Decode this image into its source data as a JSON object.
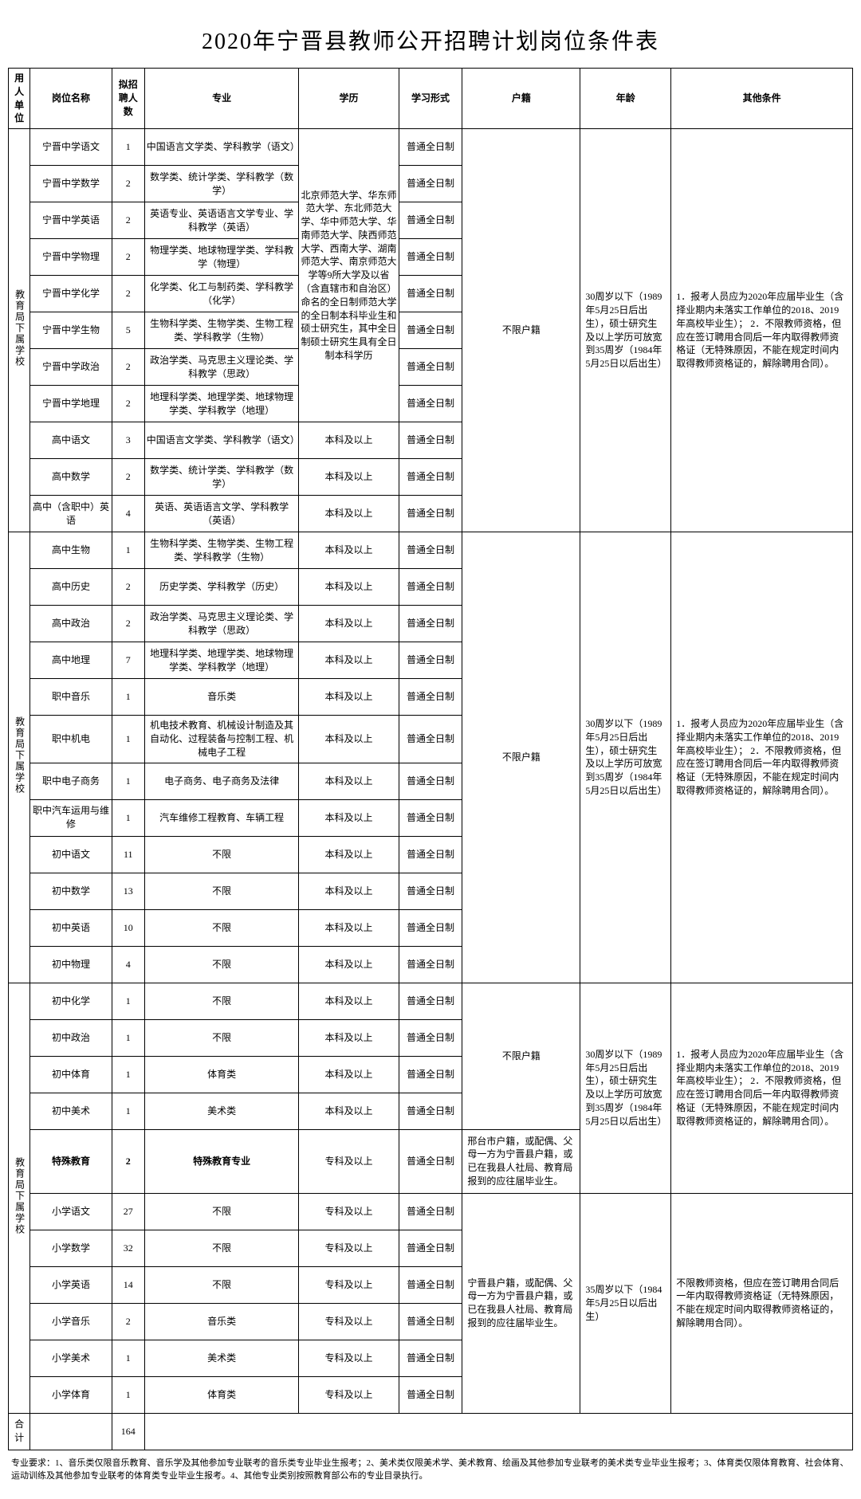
{
  "title": "2020年宁晋县教师公开招聘计划岗位条件表",
  "headers": {
    "unit": "用人单位",
    "post": "岗位名称",
    "num": "拟招聘人数",
    "major": "专业",
    "edu": "学历",
    "form": "学习形式",
    "huji": "户籍",
    "age": "年龄",
    "other": "其他条件"
  },
  "unit_label": "教育局下属学校",
  "edu_block1": "北京师范大学、华东师范大学、东北师范大学、华中师范大学、华南师范大学、陕西师范大学、西南大学、湖南师范大学、南京师范大学等9所大学及以省（含直辖市和自治区）命名的全日制师范大学的全日制本科毕业生和硕士研究生，其中全日制硕士研究生具有全日制本科学历",
  "edu_bk": "本科及以上",
  "edu_zk": "专科及以上",
  "form_full": "普通全日制",
  "huji_unlimited": "不限户籍",
  "huji_xt": "邢台市户籍，或配偶、父母一方为宁晋县户籍，或已在我县人社局、教育局报到的应往届毕业生。",
  "huji_nj": "宁晋县户籍，或配偶、父母一方为宁晋县户籍，或已在我县人社局、教育局报到的应往届毕业生。",
  "age_30": "30周岁以下（1989年5月25日后出生），硕士研究生及以上学历可放宽到35周岁（1984年5月25日以后出生）",
  "age_35": "35周岁以下（1984年5月25日以后出生）",
  "other_a": "1．报考人员应为2020年应届毕业生（含择业期内未落实工作单位的2018、2019年高校毕业生）；\n2．不限教师资格，但应在签订聘用合同后一年内取得教师资格证（无特殊原因，不能在规定时间内取得教师资格证的，解除聘用合同）。",
  "other_xx": "不限教师资格，但应在签订聘用合同后一年内取得教师资格证（无特殊原因，不能在规定时间内取得教师资格证的，解除聘用合同）。",
  "rows1": [
    {
      "post": "宁晋中学语文",
      "num": "1",
      "major": "中国语言文学类、学科教学（语文）"
    },
    {
      "post": "宁晋中学数学",
      "num": "2",
      "major": "数学类、统计学类、学科教学（数学）"
    },
    {
      "post": "宁晋中学英语",
      "num": "2",
      "major": "英语专业、英语语言文学专业、学科教学（英语）"
    },
    {
      "post": "宁晋中学物理",
      "num": "2",
      "major": "物理学类、地球物理学类、学科教学（物理）"
    },
    {
      "post": "宁晋中学化学",
      "num": "2",
      "major": "化学类、化工与制药类、学科教学（化学）"
    },
    {
      "post": "宁晋中学生物",
      "num": "5",
      "major": "生物科学类、生物学类、生物工程类、学科教学（生物）"
    },
    {
      "post": "宁晋中学政治",
      "num": "2",
      "major": "政治学类、马克思主义理论类、学科教学（思政）"
    },
    {
      "post": "宁晋中学地理",
      "num": "2",
      "major": "地理科学类、地理学类、地球物理学类、学科教学（地理）"
    }
  ],
  "rows1b": [
    {
      "post": "高中语文",
      "num": "3",
      "major": "中国语言文学类、学科教学（语文）"
    },
    {
      "post": "高中数学",
      "num": "2",
      "major": "数学类、统计学类、学科教学（数学）"
    },
    {
      "post": "高中（含职中）英语",
      "num": "4",
      "major": "英语、英语语言文学、学科教学（英语）"
    }
  ],
  "rows2": [
    {
      "post": "高中生物",
      "num": "1",
      "major": "生物科学类、生物学类、生物工程类、学科教学（生物）"
    },
    {
      "post": "高中历史",
      "num": "2",
      "major": "历史学类、学科教学（历史）"
    },
    {
      "post": "高中政治",
      "num": "2",
      "major": "政治学类、马克思主义理论类、学科教学（思政）"
    },
    {
      "post": "高中地理",
      "num": "7",
      "major": "地理科学类、地理学类、地球物理学类、学科教学（地理）"
    },
    {
      "post": "职中音乐",
      "num": "1",
      "major": "音乐类"
    },
    {
      "post": "职中机电",
      "num": "1",
      "major": "机电技术教育、机械设计制造及其自动化、过程装备与控制工程、机械电子工程"
    },
    {
      "post": "职中电子商务",
      "num": "1",
      "major": "电子商务、电子商务及法律"
    },
    {
      "post": "职中汽车运用与维修",
      "num": "1",
      "major": "汽车维修工程教育、车辆工程"
    },
    {
      "post": "初中语文",
      "num": "11",
      "major": "不限"
    },
    {
      "post": "初中数学",
      "num": "13",
      "major": "不限"
    },
    {
      "post": "初中英语",
      "num": "10",
      "major": "不限"
    },
    {
      "post": "初中物理",
      "num": "4",
      "major": "不限"
    }
  ],
  "rows3a": [
    {
      "post": "初中化学",
      "num": "1",
      "major": "不限"
    },
    {
      "post": "初中政治",
      "num": "1",
      "major": "不限"
    },
    {
      "post": "初中体育",
      "num": "1",
      "major": "体育类"
    },
    {
      "post": "初中美术",
      "num": "1",
      "major": "美术类"
    }
  ],
  "rows3_special": {
    "post": "特殊教育",
    "num": "2",
    "major": "特殊教育专业"
  },
  "rows3b": [
    {
      "post": "小学语文",
      "num": "27",
      "major": "不限"
    },
    {
      "post": "小学数学",
      "num": "32",
      "major": "不限"
    },
    {
      "post": "小学英语",
      "num": "14",
      "major": "不限"
    },
    {
      "post": "小学音乐",
      "num": "2",
      "major": "音乐类"
    },
    {
      "post": "小学美术",
      "num": "1",
      "major": "美术类"
    },
    {
      "post": "小学体育",
      "num": "1",
      "major": "体育类"
    }
  ],
  "total_label": "合计",
  "total_num": "164",
  "footnote": "专业要求：1、音乐类仅限音乐教育、音乐学及其他参加专业联考的音乐类专业毕业生报考；2、美术类仅限美术学、美术教育、绘画及其他参加专业联考的美术类专业毕业生报考；3、体育类仅限体育教育、社会体育、运动训练及其他参加专业联考的体育类专业毕业生报考。4、其他专业类别按照教育部公布的专业目录执行。"
}
